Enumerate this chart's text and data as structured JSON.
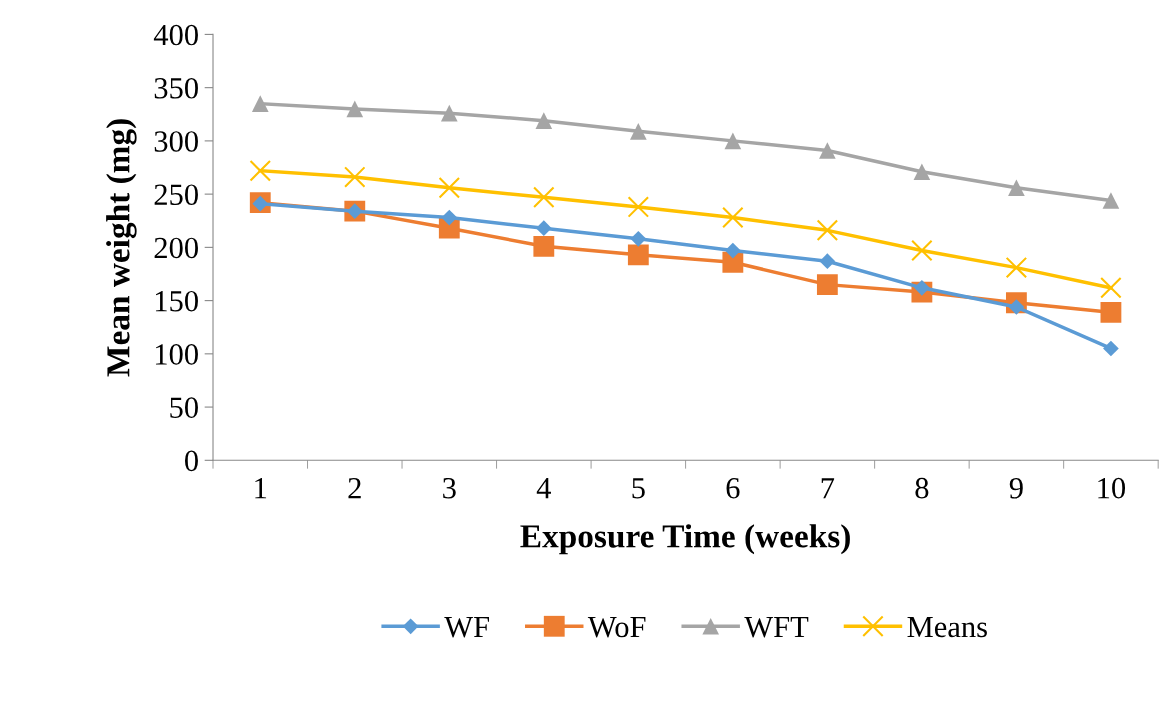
{
  "chart_data": {
    "type": "line",
    "xlabel": "Exposure Time (weeks)",
    "ylabel": "Mean weight (mg)",
    "categories": [
      "1",
      "2",
      "3",
      "4",
      "5",
      "6",
      "7",
      "8",
      "9",
      "10"
    ],
    "ylim": [
      0,
      400
    ],
    "yticks": [
      0,
      50,
      100,
      150,
      200,
      250,
      300,
      350,
      400
    ],
    "grid": false,
    "legend": "bottom",
    "series": [
      {
        "name": "WF",
        "color": "#5b9bd5",
        "marker": "diamond",
        "values": [
          241,
          234,
          228,
          218,
          208,
          197,
          187,
          162,
          144,
          105
        ]
      },
      {
        "name": "WoF",
        "color": "#ed7d31",
        "marker": "square",
        "values": [
          242,
          234,
          218,
          201,
          193,
          186,
          165,
          158,
          148,
          139
        ]
      },
      {
        "name": "WFT",
        "color": "#a5a5a5",
        "marker": "triangle",
        "values": [
          335,
          330,
          326,
          319,
          309,
          300,
          291,
          271,
          256,
          244
        ]
      },
      {
        "name": "Means",
        "color": "#ffc000",
        "marker": "cross",
        "values": [
          272,
          266,
          256,
          247,
          238,
          228,
          216,
          197,
          181,
          162
        ]
      }
    ]
  }
}
